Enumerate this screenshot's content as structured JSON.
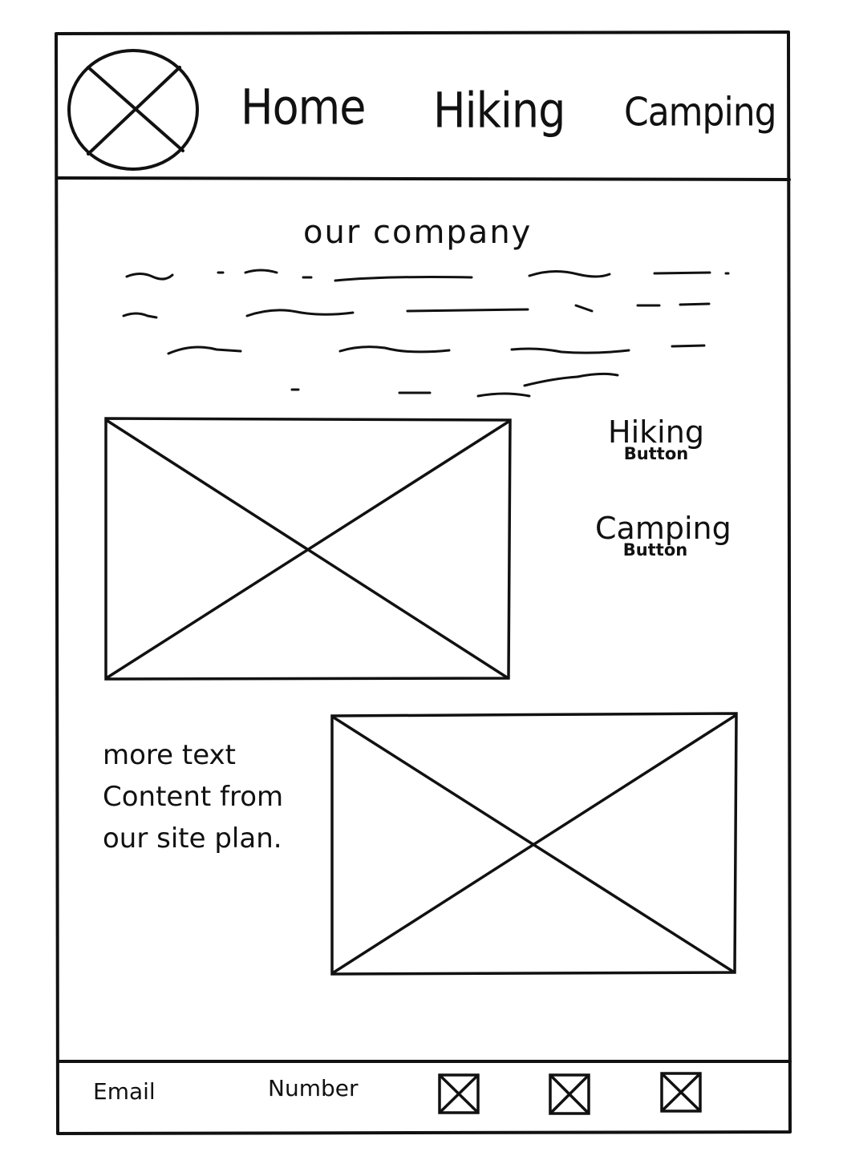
{
  "header": {
    "nav": {
      "home": "Home",
      "hiking": "Hiking",
      "camping": "Camping"
    }
  },
  "main": {
    "heading": "our company",
    "side_buttons": {
      "hiking": {
        "title": "Hiking",
        "caption": "Button"
      },
      "camping": {
        "title": "Camping",
        "caption": "Button"
      }
    },
    "more_text": "more text Content from our site plan."
  },
  "footer": {
    "email": "Email",
    "number": "Number",
    "social_icons": [
      "placeholder-icon",
      "placeholder-icon",
      "placeholder-icon"
    ]
  }
}
